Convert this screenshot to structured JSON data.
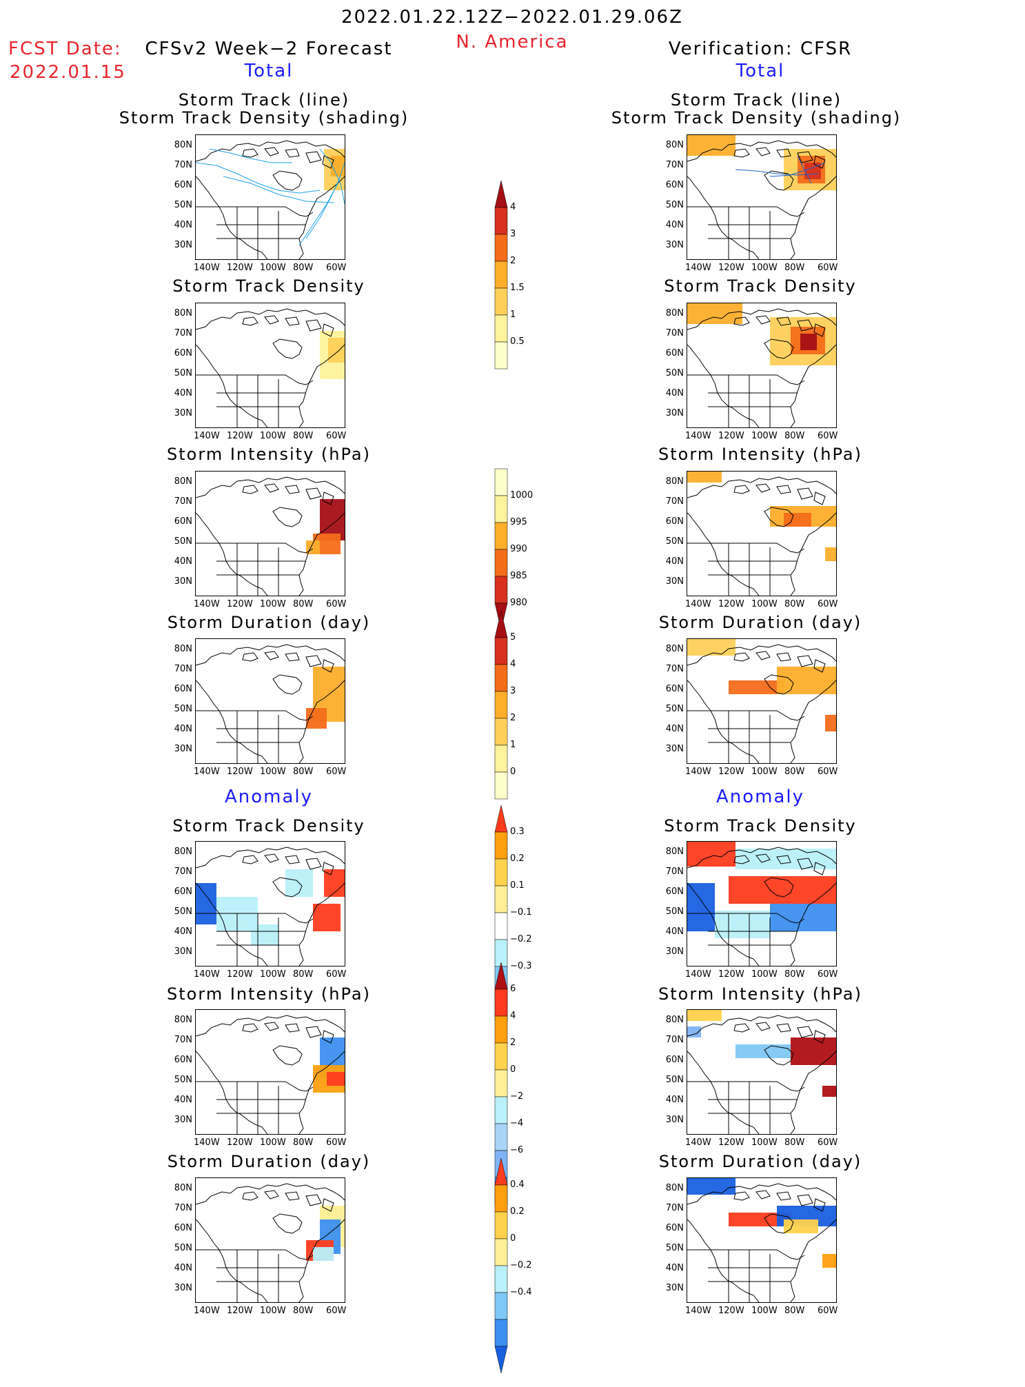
{
  "header": {
    "period": "2022.01.22.12Z−2022.01.29.06Z",
    "region": "N. America",
    "fcst_label": "FCST Date:",
    "fcst_date": "2022.01.15",
    "left_title": "CFSv2 Week−2 Forecast",
    "right_title": "Verification: CFSR"
  },
  "sections": {
    "total": "Total",
    "anomaly": "Anomaly"
  },
  "panel_titles": {
    "track_line": "Storm Track (line)",
    "track_shading": "Storm Track Density (shading)",
    "density": "Storm Track Density",
    "intensity": "Storm Intensity (hPa)",
    "duration": "Storm Duration (day)"
  },
  "axes": {
    "lat": [
      "80N",
      "70N",
      "60N",
      "50N",
      "40N",
      "30N"
    ],
    "lon": [
      "140W",
      "120W",
      "100W",
      "80W",
      "60W"
    ]
  },
  "colorbars": {
    "density_total": {
      "labels": [
        "4",
        "3",
        "2",
        "1.5",
        "1",
        "0.5"
      ],
      "colors": [
        "#a50f15",
        "#d7301f",
        "#f46d1a",
        "#fdae2b",
        "#fdd05a",
        "#fff29c",
        "#ffffcc"
      ]
    },
    "intensity_total": {
      "labels": [
        "1000",
        "995",
        "990",
        "985",
        "980"
      ],
      "colors": [
        "#ffffcc",
        "#fff29c",
        "#fdae2b",
        "#f46d1a",
        "#d7301f",
        "#a50f15"
      ]
    },
    "duration_total": {
      "labels": [
        "5",
        "4",
        "3",
        "2",
        "1",
        "0"
      ],
      "colors": [
        "#a50f15",
        "#d7301f",
        "#f46d1a",
        "#fdae2b",
        "#fdd05a",
        "#fff29c",
        "#ffffcc"
      ]
    },
    "density_anom": {
      "labels": [
        "0.3",
        "0.2",
        "0.1",
        "−0.1",
        "−0.2",
        "−0.3"
      ],
      "colors": [
        "#ff3c1e",
        "#ff9f0f",
        "#ffd24d",
        "#ffef96",
        "#ffffff",
        "#b9f0fa",
        "#7fc7f5",
        "#3d8ff0",
        "#1a5fe0"
      ]
    },
    "intensity_anom": {
      "labels": [
        "6",
        "4",
        "2",
        "0",
        "−2",
        "−4",
        "−6"
      ],
      "colors": [
        "#b00f14",
        "#ff3c1e",
        "#ff9f0f",
        "#ffd24d",
        "#ffef96",
        "#b9f0fa",
        "#a8d4f7",
        "#7fb3f5",
        "#3d8ff0",
        "#1a5fe0"
      ]
    },
    "duration_anom": {
      "labels": [
        "0.4",
        "0.2",
        "0",
        "−0.2",
        "−0.4"
      ],
      "colors": [
        "#ff3c1e",
        "#ff9f0f",
        "#ffd24d",
        "#ffef96",
        "#b9f0fa",
        "#7fc7f5",
        "#3d8ff0",
        "#1a5fe0"
      ]
    }
  }
}
